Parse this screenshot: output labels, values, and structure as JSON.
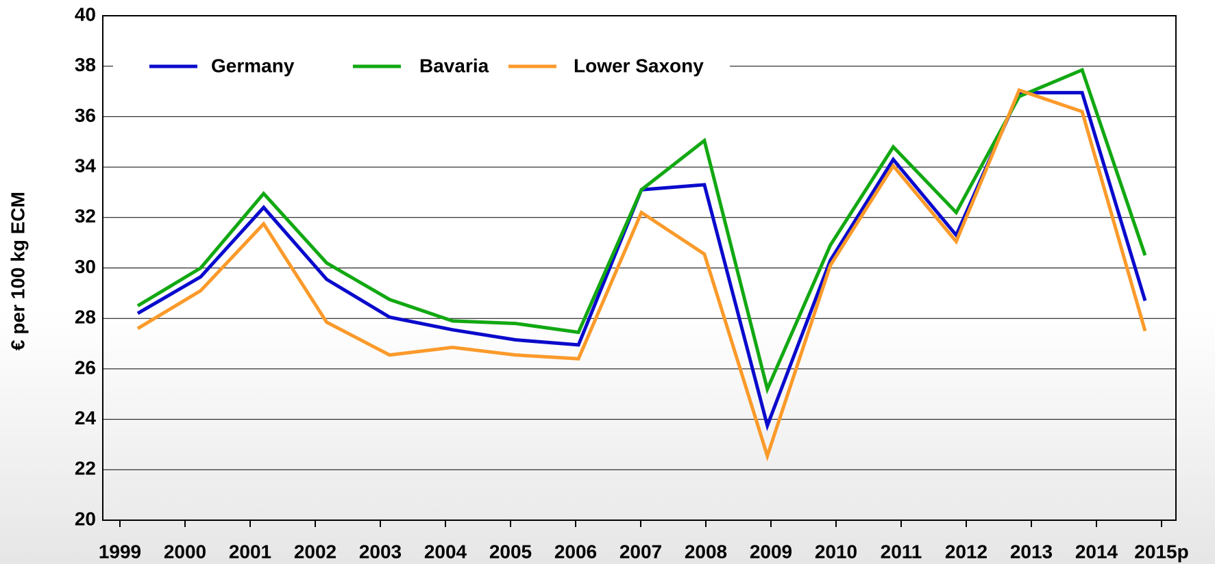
{
  "chart_data": {
    "type": "line",
    "y_label": "€ per 100 kg ECM",
    "categories": [
      "1999",
      "2000",
      "2001",
      "2002",
      "2003",
      "2004",
      "2005",
      "2006",
      "2007",
      "2008",
      "2009",
      "2010",
      "2011",
      "2012",
      "2013",
      "2014",
      "2015p"
    ],
    "series": [
      {
        "name": "Germany",
        "color": "#0a0acc",
        "values": [
          28.2,
          29.65,
          32.4,
          29.55,
          28.05,
          27.55,
          27.15,
          26.95,
          33.1,
          33.3,
          23.75,
          30.3,
          34.3,
          31.3,
          36.95,
          36.95,
          28.7
        ]
      },
      {
        "name": "Bavaria",
        "color": "#12a812",
        "values": [
          28.5,
          30.0,
          32.95,
          30.2,
          28.75,
          27.9,
          27.8,
          27.45,
          33.1,
          35.05,
          25.2,
          30.9,
          34.8,
          32.2,
          36.8,
          37.85,
          30.5
        ]
      },
      {
        "name": "Lower Saxony",
        "color": "#fb9a2a",
        "values": [
          27.6,
          29.1,
          31.75,
          27.85,
          26.55,
          26.85,
          26.55,
          26.4,
          32.2,
          30.55,
          22.55,
          30.1,
          34.05,
          31.05,
          37.05,
          36.2,
          27.5
        ]
      }
    ],
    "ylim": [
      20,
      40
    ],
    "yticks": [
      20,
      22,
      24,
      26,
      28,
      30,
      32,
      34,
      36,
      38,
      40
    ],
    "grid": true,
    "legend": "upper left"
  }
}
